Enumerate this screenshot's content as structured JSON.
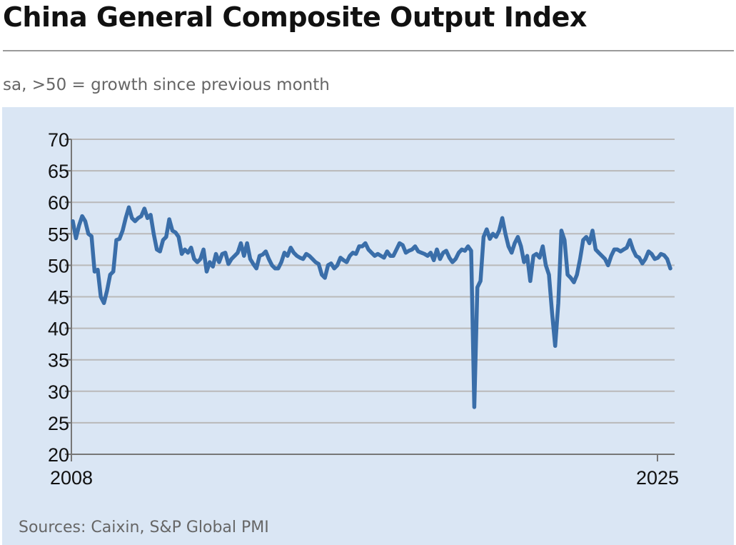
{
  "title": "China General Composite Output Index",
  "subtitle": "sa, >50 = growth since previous month",
  "source": "Sources: Caixin, S&P Global PMI",
  "colors": {
    "line": "#3a6ea9",
    "panel": "#dae6f4",
    "grid": "#b9b9b9"
  },
  "chart_data": {
    "type": "line",
    "title": "China General Composite Output Index",
    "subtitle": "sa, >50 = growth since previous month",
    "xlabel": "",
    "ylabel": "",
    "x_start": "2008",
    "x_end": "2025",
    "x_tick_labels": [
      "2008",
      "2025"
    ],
    "ylim": [
      20,
      70
    ],
    "y_ticks": [
      70,
      65,
      60,
      55,
      50,
      45,
      40,
      35,
      30,
      25,
      20
    ],
    "grid": true,
    "series": [
      {
        "values": [
          57.0,
          54.3,
          56.3,
          57.8,
          57.0,
          55.0,
          54.6,
          49.0,
          49.3,
          45.0,
          44.0,
          46.0,
          48.5,
          49.0,
          54.0,
          54.2,
          55.5,
          57.5,
          59.2,
          57.5,
          57.0,
          57.5,
          57.8,
          59.0,
          57.5,
          58.0,
          55.0,
          52.5,
          52.2,
          54.0,
          54.5,
          57.3,
          55.5,
          55.2,
          54.5,
          51.8,
          52.5,
          52.0,
          52.8,
          51.0,
          50.5,
          51.0,
          52.5,
          49.0,
          50.5,
          49.8,
          51.8,
          50.5,
          51.8,
          52.0,
          50.2,
          51.0,
          51.5,
          52.0,
          53.5,
          51.5,
          53.5,
          51.0,
          50.2,
          49.5,
          51.5,
          51.7,
          52.2,
          51.0,
          50.0,
          49.5,
          49.5,
          50.5,
          52.0,
          51.5,
          52.8,
          52.0,
          51.5,
          51.2,
          51.0,
          51.8,
          51.5,
          51.0,
          50.5,
          50.2,
          48.5,
          48.0,
          50.0,
          50.3,
          49.5,
          50.0,
          51.2,
          50.8,
          50.5,
          51.5,
          52.0,
          51.8,
          53.0,
          53.0,
          53.5,
          52.5,
          52.0,
          51.5,
          51.8,
          51.5,
          51.2,
          52.2,
          51.5,
          51.5,
          52.5,
          53.5,
          53.2,
          52.0,
          52.3,
          52.5,
          53.0,
          52.2,
          52.0,
          51.8,
          51.5,
          52.0,
          50.8,
          52.5,
          51.0,
          52.0,
          52.3,
          51.2,
          50.5,
          51.0,
          52.0,
          52.5,
          52.3,
          53.0,
          52.3,
          27.5,
          46.5,
          47.5,
          54.5,
          55.7,
          54.2,
          55.0,
          54.5,
          55.5,
          57.5,
          55.0,
          53.0,
          52.0,
          53.5,
          54.5,
          53.0,
          50.5,
          51.5,
          47.5,
          51.5,
          51.8,
          51.2,
          53.0,
          50.0,
          48.5,
          42.5,
          37.2,
          44.0,
          55.5,
          54.0,
          48.5,
          48.0,
          47.3,
          48.5,
          51.0,
          54.0,
          54.5,
          53.5,
          55.5,
          52.5,
          52.0,
          51.5,
          51.0,
          50.0,
          51.5,
          52.5,
          52.5,
          52.2,
          52.5,
          52.8,
          54.0,
          52.5,
          51.5,
          51.2,
          50.3,
          51.0,
          52.2,
          51.8,
          51.0,
          51.2,
          51.8,
          51.6,
          51.0,
          49.5
        ]
      }
    ]
  }
}
